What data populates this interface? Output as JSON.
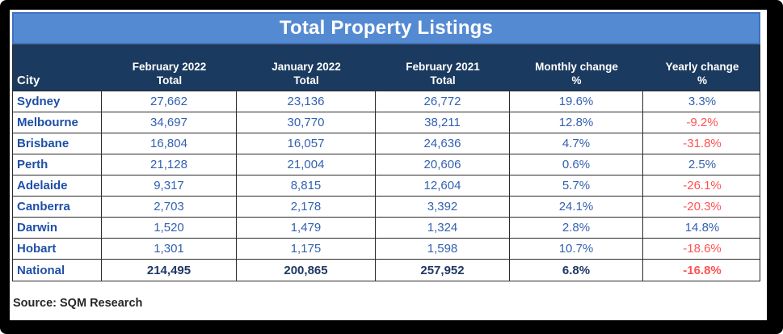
{
  "chart_data": {
    "type": "table",
    "title": "Total Property Listings",
    "columns": [
      "City",
      "February 2022 Total",
      "January 2022 Total",
      "February 2021 Total",
      "Monthly change %",
      "Yearly change %"
    ],
    "rows": [
      [
        "Sydney",
        "27,662",
        "23,136",
        "26,772",
        "19.6%",
        "3.3%"
      ],
      [
        "Melbourne",
        "34,697",
        "30,770",
        "38,211",
        "12.8%",
        "-9.2%"
      ],
      [
        "Brisbane",
        "16,804",
        "16,057",
        "24,636",
        "4.7%",
        "-31.8%"
      ],
      [
        "Perth",
        "21,128",
        "21,004",
        "20,606",
        "0.6%",
        "2.5%"
      ],
      [
        "Adelaide",
        "9,317",
        "8,815",
        "12,604",
        "5.7%",
        "-26.1%"
      ],
      [
        "Canberra",
        "2,703",
        "2,178",
        "3,392",
        "24.1%",
        "-20.3%"
      ],
      [
        "Darwin",
        "1,520",
        "1,479",
        "1,324",
        "2.8%",
        "14.8%"
      ],
      [
        "Hobart",
        "1,301",
        "1,175",
        "1,598",
        "10.7%",
        "-18.6%"
      ],
      [
        "National",
        "214,495",
        "200,865",
        "257,952",
        "6.8%",
        "-16.8%"
      ]
    ],
    "source": "Source: SQM Research"
  },
  "display": {
    "header": [
      {
        "line1": "",
        "line2": "City"
      },
      {
        "line1": "February 2022",
        "line2": "Total"
      },
      {
        "line1": "January 2022",
        "line2": "Total"
      },
      {
        "line1": "February 2021",
        "line2": "Total"
      },
      {
        "line1": "Monthly change",
        "line2": "%"
      },
      {
        "line1": "Yearly change",
        "line2": "%"
      }
    ]
  },
  "colors": {
    "frame": "#000000",
    "title_bg": "#548AD2",
    "title_border": "#3F73BE",
    "header_bg": "#1B3A5F",
    "header_text": "#FFFFFF",
    "grid_line": "#2B2B2B",
    "city_text": "#1E4FA6",
    "value_text": "#3361B0",
    "national_text": "#1F3864",
    "negative": "#FF5252",
    "source_text": "#262626"
  }
}
